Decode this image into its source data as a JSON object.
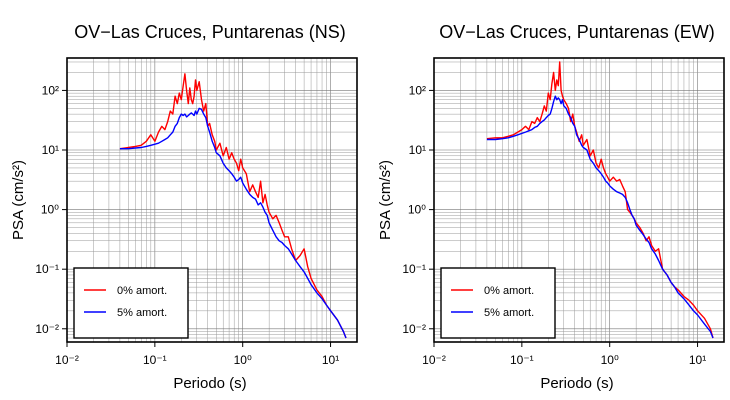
{
  "chart_data": [
    {
      "type": "line",
      "title": "OV−Las Cruces, Puntarenas (NS)",
      "xlabel": "Periodo (s)",
      "ylabel": "PSA (cm/s²)",
      "xscale": "log",
      "yscale": "log",
      "xlim": [
        0.01,
        20
      ],
      "ylim": [
        0.006,
        350
      ],
      "grid": true,
      "legend_position": "bottom-left",
      "x_tick_labels": [
        "10⁻²",
        "10⁻¹",
        "10⁰",
        "10¹"
      ],
      "y_tick_labels": [
        "10⁻²",
        "10⁻¹",
        "10⁰",
        "10¹",
        "10²"
      ],
      "series": [
        {
          "name": "0% amort.",
          "color": "#ff0000",
          "x": [
            0.04,
            0.05,
            0.06,
            0.07,
            0.08,
            0.09,
            0.1,
            0.11,
            0.12,
            0.13,
            0.14,
            0.15,
            0.16,
            0.17,
            0.18,
            0.19,
            0.2,
            0.21,
            0.22,
            0.23,
            0.24,
            0.25,
            0.26,
            0.27,
            0.28,
            0.29,
            0.3,
            0.32,
            0.34,
            0.36,
            0.38,
            0.4,
            0.42,
            0.45,
            0.48,
            0.5,
            0.55,
            0.6,
            0.65,
            0.7,
            0.75,
            0.8,
            0.85,
            0.9,
            0.95,
            1.0,
            1.1,
            1.2,
            1.3,
            1.4,
            1.5,
            1.6,
            1.7,
            1.8,
            1.9,
            2.0,
            2.2,
            2.4,
            2.6,
            2.8,
            3.0,
            3.3,
            3.6,
            4.0,
            4.5,
            5.0,
            5.5,
            6.0,
            7.0,
            8.0,
            9.0,
            10.0,
            12.0,
            14.0,
            15.0
          ],
          "y": [
            10.5,
            11.0,
            11.5,
            12.0,
            14.0,
            18.0,
            14.0,
            20.0,
            25.0,
            22.0,
            30.0,
            45.0,
            40.0,
            80.0,
            60.0,
            90.0,
            70.0,
            120.0,
            190.0,
            100.0,
            60.0,
            110.0,
            70.0,
            60.0,
            80.0,
            150.0,
            100.0,
            140.0,
            70.0,
            45.0,
            60.0,
            25.0,
            28.0,
            18.0,
            14.0,
            10.0,
            13.0,
            8.0,
            11.0,
            7.0,
            9.0,
            7.0,
            6.0,
            4.5,
            7.0,
            5.0,
            4.0,
            2.0,
            2.6,
            2.0,
            1.6,
            3.0,
            1.3,
            1.8,
            1.2,
            0.9,
            0.7,
            0.8,
            0.6,
            0.45,
            0.35,
            0.35,
            0.22,
            0.14,
            0.17,
            0.22,
            0.11,
            0.07,
            0.045,
            0.035,
            0.025,
            0.02,
            0.014,
            0.009,
            0.007
          ]
        },
        {
          "name": "5% amort.",
          "color": "#0000ff",
          "x": [
            0.04,
            0.05,
            0.06,
            0.07,
            0.08,
            0.09,
            0.1,
            0.11,
            0.12,
            0.13,
            0.14,
            0.15,
            0.16,
            0.17,
            0.18,
            0.19,
            0.2,
            0.21,
            0.22,
            0.23,
            0.24,
            0.25,
            0.26,
            0.27,
            0.28,
            0.29,
            0.3,
            0.32,
            0.34,
            0.36,
            0.38,
            0.4,
            0.42,
            0.45,
            0.48,
            0.5,
            0.55,
            0.6,
            0.65,
            0.7,
            0.75,
            0.8,
            0.85,
            0.9,
            0.95,
            1.0,
            1.1,
            1.2,
            1.3,
            1.4,
            1.5,
            1.6,
            1.7,
            1.8,
            1.9,
            2.0,
            2.2,
            2.4,
            2.6,
            2.8,
            3.0,
            3.3,
            3.6,
            4.0,
            4.5,
            5.0,
            5.5,
            6.0,
            7.0,
            8.0,
            9.0,
            10.0,
            12.0,
            14.0,
            15.0
          ],
          "y": [
            10.5,
            10.5,
            10.8,
            11.0,
            11.5,
            12.0,
            12.5,
            13.0,
            14.0,
            15.0,
            16.0,
            18.0,
            20.0,
            25.0,
            28.0,
            35.0,
            40.0,
            38.0,
            40.0,
            36.0,
            38.0,
            40.0,
            42.0,
            40.0,
            38.0,
            45.0,
            40.0,
            50.0,
            48.0,
            40.0,
            35.0,
            25.0,
            20.0,
            14.0,
            11.0,
            9.0,
            8.0,
            6.0,
            5.0,
            4.5,
            4.0,
            3.5,
            3.0,
            3.2,
            3.5,
            2.8,
            2.2,
            1.8,
            1.6,
            1.5,
            1.2,
            1.3,
            1.1,
            0.9,
            0.8,
            0.6,
            0.45,
            0.35,
            0.3,
            0.28,
            0.25,
            0.22,
            0.18,
            0.14,
            0.11,
            0.09,
            0.07,
            0.055,
            0.04,
            0.032,
            0.025,
            0.02,
            0.014,
            0.009,
            0.007
          ]
        }
      ]
    },
    {
      "type": "line",
      "title": "OV−Las Cruces, Puntarenas (EW)",
      "xlabel": "Periodo (s)",
      "ylabel": "PSA (cm/s²)",
      "xscale": "log",
      "yscale": "log",
      "xlim": [
        0.01,
        20
      ],
      "ylim": [
        0.006,
        350
      ],
      "grid": true,
      "legend_position": "bottom-left",
      "x_tick_labels": [
        "10⁻²",
        "10⁻¹",
        "10⁰",
        "10¹"
      ],
      "y_tick_labels": [
        "10⁻²",
        "10⁻¹",
        "10⁰",
        "10¹",
        "10²"
      ],
      "series": [
        {
          "name": "0% amort.",
          "color": "#ff0000",
          "x": [
            0.04,
            0.05,
            0.06,
            0.07,
            0.08,
            0.09,
            0.1,
            0.11,
            0.12,
            0.13,
            0.14,
            0.15,
            0.16,
            0.17,
            0.18,
            0.19,
            0.2,
            0.21,
            0.22,
            0.23,
            0.24,
            0.25,
            0.26,
            0.27,
            0.28,
            0.29,
            0.3,
            0.32,
            0.34,
            0.36,
            0.38,
            0.4,
            0.42,
            0.45,
            0.48,
            0.5,
            0.55,
            0.6,
            0.65,
            0.7,
            0.75,
            0.8,
            0.85,
            0.9,
            0.95,
            1.0,
            1.1,
            1.2,
            1.3,
            1.4,
            1.5,
            1.6,
            1.7,
            1.8,
            1.9,
            2.0,
            2.2,
            2.4,
            2.6,
            2.8,
            3.0,
            3.3,
            3.6,
            4.0,
            4.5,
            5.0,
            5.5,
            6.0,
            7.0,
            8.0,
            9.0,
            10.0,
            12.0,
            14.0,
            15.0
          ],
          "y": [
            15.5,
            16.0,
            16.0,
            17.0,
            18.0,
            20.0,
            22.0,
            25.0,
            22.0,
            30.0,
            28.0,
            35.0,
            30.0,
            40.0,
            55.0,
            45.0,
            90.0,
            70.0,
            130.0,
            200.0,
            100.0,
            150.0,
            120.0,
            300.0,
            100.0,
            80.0,
            70.0,
            60.0,
            50.0,
            30.0,
            40.0,
            25.0,
            20.0,
            14.0,
            18.0,
            12.0,
            15.0,
            8.0,
            10.0,
            6.0,
            5.0,
            7.0,
            5.0,
            4.0,
            3.5,
            3.0,
            3.5,
            3.0,
            3.2,
            2.5,
            2.0,
            1.0,
            0.9,
            0.8,
            0.7,
            0.6,
            0.5,
            0.4,
            0.3,
            0.35,
            0.25,
            0.2,
            0.22,
            0.1,
            0.08,
            0.06,
            0.05,
            0.045,
            0.035,
            0.03,
            0.025,
            0.02,
            0.015,
            0.01,
            0.007
          ]
        },
        {
          "name": "5% amort.",
          "color": "#0000ff",
          "x": [
            0.04,
            0.05,
            0.06,
            0.07,
            0.08,
            0.09,
            0.1,
            0.11,
            0.12,
            0.13,
            0.14,
            0.15,
            0.16,
            0.17,
            0.18,
            0.19,
            0.2,
            0.21,
            0.22,
            0.23,
            0.24,
            0.25,
            0.26,
            0.27,
            0.28,
            0.29,
            0.3,
            0.32,
            0.34,
            0.36,
            0.38,
            0.4,
            0.42,
            0.45,
            0.48,
            0.5,
            0.55,
            0.6,
            0.65,
            0.7,
            0.75,
            0.8,
            0.85,
            0.9,
            0.95,
            1.0,
            1.1,
            1.2,
            1.3,
            1.4,
            1.5,
            1.6,
            1.7,
            1.8,
            1.9,
            2.0,
            2.2,
            2.4,
            2.6,
            2.8,
            3.0,
            3.3,
            3.6,
            4.0,
            4.5,
            5.0,
            5.5,
            6.0,
            7.0,
            8.0,
            9.0,
            10.0,
            12.0,
            14.0,
            15.0
          ],
          "y": [
            15.0,
            15.0,
            15.5,
            16.0,
            17.0,
            18.0,
            19.0,
            20.0,
            21.0,
            22.0,
            24.0,
            25.0,
            28.0,
            30.0,
            32.0,
            35.0,
            38.0,
            40.0,
            50.0,
            65.0,
            80.0,
            70.0,
            75.0,
            70.0,
            60.0,
            70.0,
            55.0,
            50.0,
            40.0,
            35.0,
            28.0,
            25.0,
            18.0,
            15.0,
            12.0,
            11.0,
            10.0,
            7.0,
            6.0,
            5.0,
            4.5,
            4.0,
            3.5,
            3.0,
            2.8,
            2.5,
            2.2,
            2.0,
            1.9,
            1.8,
            1.6,
            1.3,
            1.0,
            0.8,
            0.7,
            0.55,
            0.45,
            0.38,
            0.32,
            0.28,
            0.22,
            0.18,
            0.14,
            0.1,
            0.08,
            0.06,
            0.05,
            0.04,
            0.032,
            0.025,
            0.02,
            0.017,
            0.012,
            0.009,
            0.007
          ]
        }
      ]
    }
  ]
}
